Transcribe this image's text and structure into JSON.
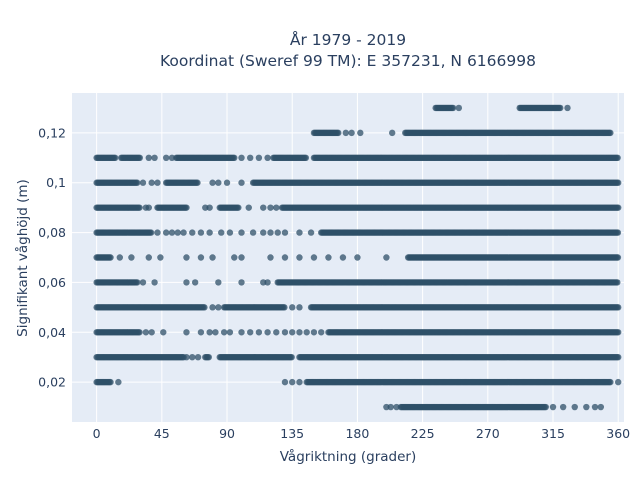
{
  "chart_data": {
    "type": "scatter",
    "title": "År 1979 - 2019",
    "subtitle": "Koordinat (Sweref 99 TM): E 357231, N 6166998",
    "xlabel": "Vågriktning (grader)",
    "ylabel": "Signifikant våghöjd (m)",
    "xlim": [
      -17,
      364
    ],
    "ylim": [
      0.004,
      0.136
    ],
    "xticks": [
      0,
      45,
      90,
      135,
      180,
      225,
      270,
      315,
      360
    ],
    "xtick_labels": [
      "0",
      "45",
      "90",
      "135",
      "180",
      "225",
      "270",
      "315",
      "360"
    ],
    "yticks": [
      0.02,
      0.04,
      0.06,
      0.08,
      0.1,
      0.12
    ],
    "ytick_labels": [
      "0,02",
      "0,04",
      "0,06",
      "0,08",
      "0,1",
      "0,12"
    ],
    "grid": true,
    "marker_color": "#2f5068",
    "plot_bg": "#e5ecf6",
    "series": [
      {
        "y": 0.13,
        "x_ranges": [
          [
            234,
            246
          ],
          [
            292,
            320
          ]
        ],
        "x_points": [
          250,
          325
        ]
      },
      {
        "y": 0.12,
        "x_ranges": [
          [
            150,
            167
          ],
          [
            213,
            355
          ]
        ],
        "x_points": [
          172,
          176,
          182,
          204
        ]
      },
      {
        "y": 0.11,
        "x_ranges": [
          [
            0,
            13
          ],
          [
            17,
            30
          ],
          [
            55,
            95
          ],
          [
            122,
            145
          ],
          [
            150,
            360
          ]
        ],
        "x_points": [
          36,
          40,
          48,
          52,
          100,
          106,
          112,
          118
        ]
      },
      {
        "y": 0.1,
        "x_ranges": [
          [
            0,
            28
          ],
          [
            48,
            70
          ],
          [
            108,
            360
          ]
        ],
        "x_points": [
          32,
          38,
          42,
          80,
          84,
          90,
          100
        ]
      },
      {
        "y": 0.09,
        "x_ranges": [
          [
            0,
            30
          ],
          [
            42,
            62
          ],
          [
            85,
            98
          ],
          [
            128,
            360
          ]
        ],
        "x_points": [
          34,
          36,
          75,
          78,
          105,
          115,
          120,
          124
        ]
      },
      {
        "y": 0.08,
        "x_ranges": [
          [
            0,
            38
          ],
          [
            155,
            360
          ]
        ],
        "x_points": [
          42,
          48,
          52,
          56,
          60,
          66,
          72,
          78,
          86,
          92,
          100,
          108,
          115,
          120,
          125,
          130,
          140,
          148
        ]
      },
      {
        "y": 0.07,
        "x_ranges": [
          [
            0,
            10
          ],
          [
            215,
            360
          ]
        ],
        "x_points": [
          16,
          24,
          36,
          44,
          62,
          72,
          80,
          95,
          100,
          120,
          130,
          140,
          150,
          160,
          170,
          180,
          200
        ]
      },
      {
        "y": 0.06,
        "x_ranges": [
          [
            0,
            28
          ],
          [
            125,
            360
          ]
        ],
        "x_points": [
          32,
          40,
          62,
          68,
          84,
          100,
          115,
          118
        ]
      },
      {
        "y": 0.05,
        "x_ranges": [
          [
            0,
            75
          ],
          [
            88,
            130
          ],
          [
            148,
            360
          ]
        ],
        "x_points": [
          80,
          84,
          135,
          140
        ]
      },
      {
        "y": 0.04,
        "x_ranges": [
          [
            0,
            30
          ],
          [
            160,
            360
          ]
        ],
        "x_points": [
          34,
          38,
          46,
          62,
          72,
          78,
          82,
          88,
          92,
          100,
          106,
          112,
          118,
          124,
          130,
          135,
          140,
          145,
          150,
          155
        ]
      },
      {
        "y": 0.03,
        "x_ranges": [
          [
            0,
            60
          ],
          [
            75,
            78
          ],
          [
            85,
            135
          ],
          [
            140,
            360
          ]
        ],
        "x_points": [
          62,
          66,
          70
        ]
      },
      {
        "y": 0.02,
        "x_ranges": [
          [
            0,
            10
          ],
          [
            145,
            355
          ]
        ],
        "x_points": [
          15,
          130,
          135,
          140,
          360
        ]
      },
      {
        "y": 0.01,
        "x_ranges": [
          [
            210,
            310
          ]
        ],
        "x_points": [
          200,
          203,
          207,
          315,
          322,
          330,
          338,
          344,
          348
        ]
      }
    ]
  }
}
